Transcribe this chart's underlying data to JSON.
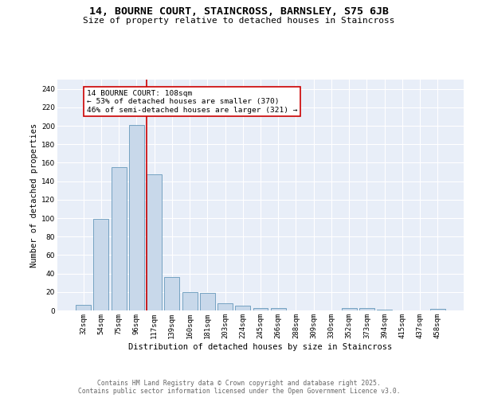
{
  "title_line1": "14, BOURNE COURT, STAINCROSS, BARNSLEY, S75 6JB",
  "title_line2": "Size of property relative to detached houses in Staincross",
  "xlabel": "Distribution of detached houses by size in Staincross",
  "ylabel": "Number of detached properties",
  "bar_color": "#c8d8ea",
  "bar_edge_color": "#6699bb",
  "background_color": "#e8eef8",
  "grid_color": "#ffffff",
  "categories": [
    "32sqm",
    "54sqm",
    "75sqm",
    "96sqm",
    "117sqm",
    "139sqm",
    "160sqm",
    "181sqm",
    "203sqm",
    "224sqm",
    "245sqm",
    "266sqm",
    "288sqm",
    "309sqm",
    "330sqm",
    "352sqm",
    "373sqm",
    "394sqm",
    "415sqm",
    "437sqm",
    "458sqm"
  ],
  "values": [
    6,
    99,
    155,
    201,
    147,
    36,
    20,
    19,
    8,
    5,
    3,
    3,
    0,
    0,
    0,
    3,
    3,
    1,
    0,
    0,
    2
  ],
  "red_line_x": 3.55,
  "annotation_text_line1": "14 BOURNE COURT: 108sqm",
  "annotation_text_line2": "← 53% of detached houses are smaller (370)",
  "annotation_text_line3": "46% of semi-detached houses are larger (321) →",
  "annotation_box_color": "white",
  "annotation_box_edge_color": "#cc0000",
  "ylim": [
    0,
    250
  ],
  "yticks": [
    0,
    20,
    40,
    60,
    80,
    100,
    120,
    140,
    160,
    180,
    200,
    220,
    240
  ],
  "footer_line1": "Contains HM Land Registry data © Crown copyright and database right 2025.",
  "footer_line2": "Contains public sector information licensed under the Open Government Licence v3.0.",
  "title_fontsize": 9.5,
  "subtitle_fontsize": 8.0,
  "axis_label_fontsize": 7.5,
  "tick_fontsize": 6.5,
  "annotation_fontsize": 6.8,
  "footer_fontsize": 5.8
}
